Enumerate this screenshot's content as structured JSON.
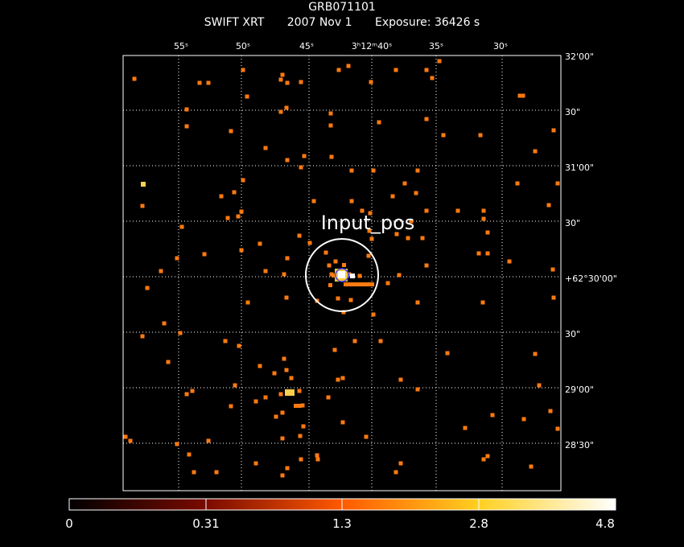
{
  "header": {
    "target": "GRB071101",
    "instrument": "SWIFT XRT",
    "date": "2007 Nov  1",
    "exposure": "Exposure: 36426 s"
  },
  "region_label": "Input_pos",
  "axes": {
    "ra_ticks": [
      "55ˢ",
      "50ˢ",
      "45ˢ",
      "3ʰ12ᵐ40ˢ",
      "35ˢ",
      "30ˢ"
    ],
    "dec_ticks": [
      "32'00\"",
      "30\"",
      "31'00\"",
      "30\"",
      "+62°30'00\"",
      "30\"",
      "29'00\"",
      "28'30\""
    ]
  },
  "colorbar": {
    "labels": [
      "0",
      "0.31",
      "1.3",
      "2.8",
      "4.8"
    ],
    "colors": [
      "#000000",
      "#7a0a00",
      "#ff5a00",
      "#ffd020",
      "#ffffff"
    ]
  },
  "colors": {
    "grid": "#ffffff",
    "photon": "#ff7a10",
    "photon_bright": "#ffd050",
    "source_core": "#ffffff",
    "circle": "#ffffff",
    "source_ring": "#4040ff"
  }
}
